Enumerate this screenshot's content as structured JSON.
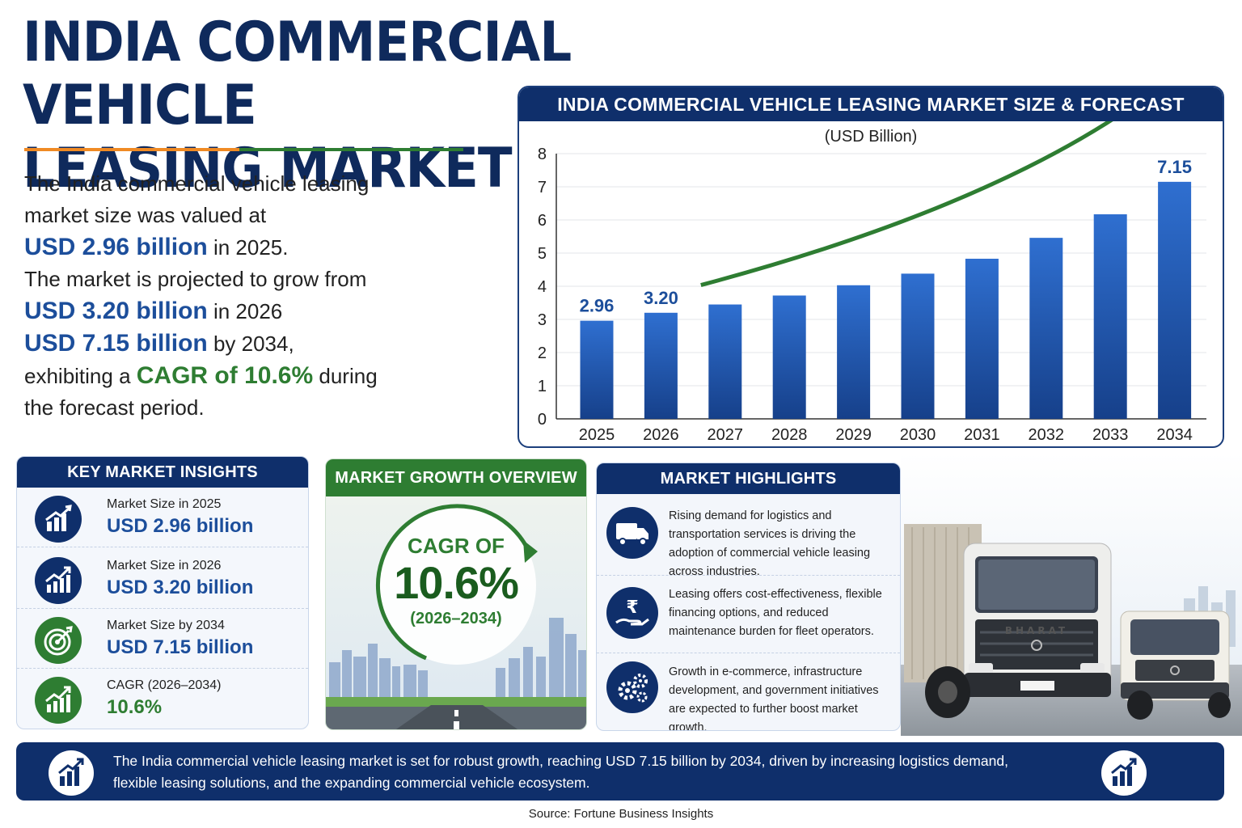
{
  "title": {
    "line1": "INDIA COMMERCIAL VEHICLE",
    "line2": "LEASING MARKET"
  },
  "intro": {
    "p1": "The India commercial vehicle leasing market size was valued at",
    "v2025": "USD 2.96 billion",
    "t2025": " in 2025.",
    "p2": "The market is projected to grow from",
    "v2026": "USD 3.20 billion",
    "t2026": " in 2026",
    "v2034": "USD 7.15 billion",
    "t2034": " by 2034,",
    "p3": "exhibiting a ",
    "cagr": "CAGR of 10.6%",
    "p4": " during the forecast period."
  },
  "chart_panel": {
    "header": "INDIA COMMERCIAL VEHICLE LEASING MARKET SIZE & FORECAST",
    "unit": "(USD Billion)"
  },
  "chart_data": {
    "type": "bar",
    "title": "INDIA COMMERCIAL VEHICLE LEASING MARKET SIZE & FORECAST",
    "ylabel": "(USD Billion)",
    "xlabel": "",
    "categories": [
      "2025",
      "2026",
      "2027",
      "2028",
      "2029",
      "2030",
      "2031",
      "2032",
      "2033",
      "2034"
    ],
    "values": [
      2.96,
      3.2,
      3.45,
      3.72,
      4.03,
      4.38,
      4.83,
      5.46,
      6.17,
      7.15
    ],
    "data_labels": {
      "2025": "2.96",
      "2026": "3.20",
      "2034": "7.15"
    },
    "ylim": [
      0,
      8
    ],
    "yticks": [
      0,
      1,
      2,
      3,
      4,
      5,
      6,
      7,
      8
    ],
    "grid": true,
    "bar_color": "#1f5cb3",
    "trend_arrow_color": "#2e7d32"
  },
  "insights": {
    "header": "KEY MARKET INSIGHTS",
    "items": [
      {
        "label": "Market Size in 2025",
        "value": "USD 2.96 billion",
        "icon": "bar-chart-icon"
      },
      {
        "label": "Market Size in 2026",
        "value": "USD 3.20 billion",
        "icon": "growth-chart-icon"
      },
      {
        "label": "Market Size by 2034",
        "value": "USD 7.15 billion",
        "icon": "target-icon"
      },
      {
        "label": "CAGR (2026–2034)",
        "value": "10.6%",
        "icon": "growth-chart-icon"
      }
    ]
  },
  "growth": {
    "header": "MARKET GROWTH OVERVIEW",
    "cagr_of": "CAGR OF",
    "cagr_value": "10.6%",
    "period": "(2026–2034)"
  },
  "highlights": {
    "header": "MARKET HIGHLIGHTS",
    "items": [
      {
        "text": "Rising demand for logistics and transportation services is driving the adoption of commercial vehicle leasing across industries.",
        "icon": "truck-icon"
      },
      {
        "text": "Leasing offers cost-effectiveness, flexible financing options, and reduced maintenance burden for fleet operators.",
        "icon": "rupee-hand-icon"
      },
      {
        "text": "Growth in e-commerce, infrastructure development, and government initiatives are expected to further boost market growth.",
        "icon": "gears-icon"
      }
    ]
  },
  "truck_image": {
    "brand_text": "BHARAT"
  },
  "footer": {
    "text": "The India commercial vehicle leasing market is set for robust growth, reaching USD 7.15 billion by 2034, driven by increasing logistics demand, flexible leasing solutions, and the expanding commercial vehicle ecosystem."
  },
  "source": "Source: Fortune Business Insights",
  "colors": {
    "navy": "#0f2f6b",
    "blue": "#1c4e9b",
    "green": "#2e7d32",
    "orange": "#f08a24"
  }
}
